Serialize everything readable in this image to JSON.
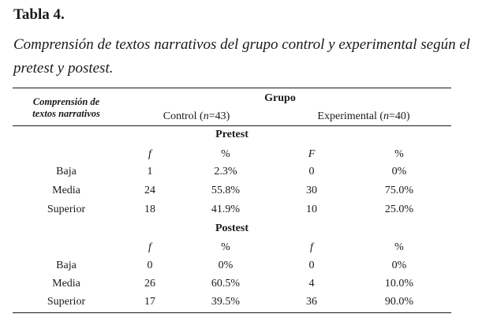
{
  "table_label": "Tabla 4.",
  "caption_line1": "Comprensión de textos narrativos del grupo control y experimental según el",
  "caption_line2": "pretest y postest.",
  "header": {
    "row_header_line1": "Comprensión de",
    "row_header_line2": "textos narrativos",
    "group": "Grupo",
    "control_prefix": "Control (",
    "control_n": "n",
    "control_suffix": "=43)",
    "experimental_prefix": "Experimental (",
    "experimental_n": "n",
    "experimental_suffix": "=40)"
  },
  "pretest": {
    "title": "Pretest",
    "cols": [
      "f",
      "%",
      "F",
      "%"
    ],
    "rows": [
      {
        "label": "Baja",
        "values": [
          "1",
          "2.3%",
          "0",
          "0%"
        ]
      },
      {
        "label": "Media",
        "values": [
          "24",
          "55.8%",
          "30",
          "75.0%"
        ]
      },
      {
        "label": "Superior",
        "values": [
          "18",
          "41.9%",
          "10",
          "25.0%"
        ]
      }
    ]
  },
  "postest": {
    "title": "Postest",
    "cols": [
      "f",
      "%",
      "f",
      "%"
    ],
    "rows": [
      {
        "label": "Baja",
        "values": [
          "0",
          "0%",
          "0",
          "0%"
        ]
      },
      {
        "label": "Media",
        "values": [
          "26",
          "60.5%",
          "4",
          "10.0%"
        ]
      },
      {
        "label": "Superior",
        "values": [
          "17",
          "39.5%",
          "36",
          "90.0%"
        ]
      }
    ]
  }
}
